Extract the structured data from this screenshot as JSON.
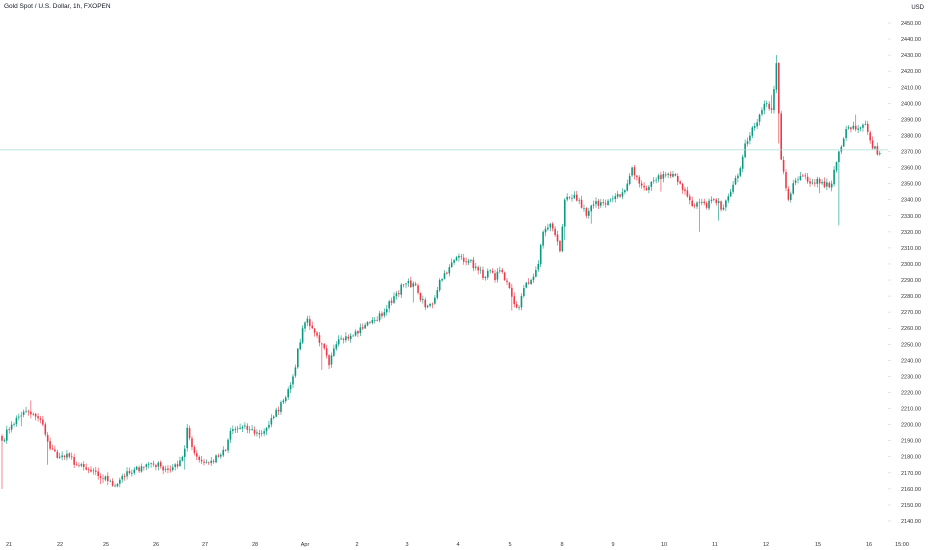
{
  "header": {
    "title": "Gold Spot / U.S. Dollar, 1h, FXOPEN",
    "currency": "USD"
  },
  "colors": {
    "up": "#089981",
    "down": "#f23645",
    "price_line": "#a6d9d3",
    "text": "#131722",
    "axis_text": "#333333"
  },
  "chart_data": {
    "type": "candlestick",
    "ylim": [
      2136,
      2458
    ],
    "y_ticks": [
      2140,
      2150,
      2160,
      2170,
      2180,
      2190,
      2200,
      2210,
      2220,
      2230,
      2240,
      2250,
      2260,
      2270,
      2280,
      2290,
      2300,
      2310,
      2320,
      2330,
      2340,
      2350,
      2360,
      2370,
      2380,
      2390,
      2400,
      2410,
      2420,
      2430,
      2440,
      2450
    ],
    "x_labels": [
      "21",
      "22",
      "25",
      "26",
      "27",
      "28",
      "Apr",
      "2",
      "3",
      "4",
      "5",
      "8",
      "9",
      "10",
      "11",
      "12",
      "15",
      "16",
      "15:00"
    ],
    "current_price": 2371,
    "closes_waypoints": [
      [
        0,
        2190
      ],
      [
        4,
        2200
      ],
      [
        9,
        2208
      ],
      [
        14,
        2205
      ],
      [
        17,
        2200
      ],
      [
        20,
        2185
      ],
      [
        24,
        2180
      ],
      [
        28,
        2180
      ],
      [
        31,
        2175
      ],
      [
        35,
        2172
      ],
      [
        40,
        2168
      ],
      [
        45,
        2165
      ],
      [
        47,
        2162
      ],
      [
        50,
        2168
      ],
      [
        54,
        2170
      ],
      [
        58,
        2174
      ],
      [
        62,
        2176
      ],
      [
        66,
        2174
      ],
      [
        70,
        2172
      ],
      [
        73,
        2174
      ],
      [
        76,
        2185
      ],
      [
        77,
        2198
      ],
      [
        79,
        2186
      ],
      [
        82,
        2178
      ],
      [
        86,
        2176
      ],
      [
        90,
        2180
      ],
      [
        93,
        2184
      ],
      [
        95,
        2196
      ],
      [
        99,
        2198
      ],
      [
        103,
        2197
      ],
      [
        107,
        2194
      ],
      [
        110,
        2198
      ],
      [
        113,
        2205
      ],
      [
        117,
        2215
      ],
      [
        121,
        2230
      ],
      [
        125,
        2260
      ],
      [
        127,
        2266
      ],
      [
        129,
        2260
      ],
      [
        133,
        2250
      ],
      [
        136,
        2237
      ],
      [
        139,
        2250
      ],
      [
        143,
        2255
      ],
      [
        147,
        2258
      ],
      [
        151,
        2262
      ],
      [
        155,
        2265
      ],
      [
        159,
        2270
      ],
      [
        163,
        2280
      ],
      [
        167,
        2287
      ],
      [
        171,
        2288
      ],
      [
        173,
        2282
      ],
      [
        176,
        2273
      ],
      [
        179,
        2275
      ],
      [
        182,
        2290
      ],
      [
        186,
        2298
      ],
      [
        190,
        2305
      ],
      [
        194,
        2302
      ],
      [
        198,
        2296
      ],
      [
        201,
        2292
      ],
      [
        203,
        2296
      ],
      [
        205,
        2290
      ],
      [
        207,
        2296
      ],
      [
        209,
        2290
      ],
      [
        211,
        2285
      ],
      [
        213,
        2275
      ],
      [
        215,
        2273
      ],
      [
        217,
        2285
      ],
      [
        220,
        2290
      ],
      [
        223,
        2300
      ],
      [
        225,
        2320
      ],
      [
        228,
        2325
      ],
      [
        230,
        2318
      ],
      [
        232,
        2308
      ],
      [
        234,
        2340
      ],
      [
        238,
        2343
      ],
      [
        241,
        2335
      ],
      [
        243,
        2330
      ],
      [
        246,
        2337
      ],
      [
        250,
        2338
      ],
      [
        253,
        2340
      ],
      [
        257,
        2342
      ],
      [
        260,
        2350
      ],
      [
        262,
        2360
      ],
      [
        265,
        2350
      ],
      [
        268,
        2346
      ],
      [
        271,
        2352
      ],
      [
        275,
        2356
      ],
      [
        279,
        2356
      ],
      [
        282,
        2350
      ],
      [
        285,
        2342
      ],
      [
        288,
        2336
      ],
      [
        290,
        2338
      ],
      [
        293,
        2335
      ],
      [
        295,
        2340
      ],
      [
        297,
        2338
      ],
      [
        300,
        2335
      ],
      [
        303,
        2345
      ],
      [
        306,
        2355
      ],
      [
        309,
        2375
      ],
      [
        312,
        2385
      ],
      [
        315,
        2393
      ],
      [
        318,
        2400
      ],
      [
        320,
        2396
      ],
      [
        322,
        2425
      ],
      [
        324,
        2365
      ],
      [
        327,
        2340
      ],
      [
        330,
        2352
      ],
      [
        333,
        2355
      ],
      [
        336,
        2350
      ],
      [
        339,
        2353
      ],
      [
        342,
        2348
      ],
      [
        345,
        2350
      ],
      [
        348,
        2370
      ],
      [
        351,
        2384
      ],
      [
        354,
        2386
      ],
      [
        357,
        2385
      ],
      [
        359,
        2387
      ],
      [
        362,
        2372
      ],
      [
        365,
        2369
      ]
    ],
    "events": [
      [
        0,
        2160
      ],
      [
        8,
        2199
      ],
      [
        12,
        2215
      ],
      [
        16,
        2205
      ],
      [
        19,
        2175
      ],
      [
        41,
        2163
      ],
      [
        76,
        2172
      ],
      [
        133,
        2234
      ],
      [
        171,
        2276
      ],
      [
        212,
        2271
      ],
      [
        234,
        2315
      ],
      [
        245,
        2325
      ],
      [
        274,
        2345
      ],
      [
        290,
        2320
      ],
      [
        298,
        2327
      ],
      [
        320,
        2405
      ],
      [
        322,
        2430
      ],
      [
        323,
        2375
      ],
      [
        340,
        2344
      ],
      [
        348,
        2324
      ],
      [
        355,
        2393
      ]
    ]
  }
}
